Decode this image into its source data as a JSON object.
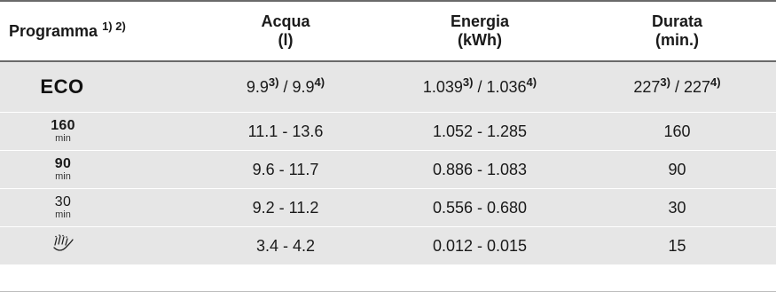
{
  "headers": {
    "program": "Programma",
    "program_notes": "1) 2)",
    "water_title": "Acqua",
    "water_unit": "(l)",
    "energy_title": "Energia",
    "energy_unit": "(kWh)",
    "duration_title": "Durata",
    "duration_unit": "(min.)"
  },
  "rows": [
    {
      "program": "ECO",
      "water_a": "9.9",
      "water_a_note": "3)",
      "water_sep": " / ",
      "water_b": "9.9",
      "water_b_note": "4)",
      "energy_a": "1.039",
      "energy_a_note": "3)",
      "energy_sep": " / ",
      "energy_b": "1.036",
      "energy_b_note": "4)",
      "duration_a": "227",
      "duration_a_note": "3)",
      "duration_sep": " / ",
      "duration_b": "227",
      "duration_b_note": "4)"
    },
    {
      "program_num": "160",
      "program_unit": "min",
      "water": "11.1 - 13.6",
      "energy": "1.052 - 1.285",
      "duration": "160"
    },
    {
      "program_num": "90",
      "program_unit": "min",
      "water": "9.6 - 11.7",
      "energy": "0.886 - 1.083",
      "duration": "90"
    },
    {
      "program_num": "30",
      "program_unit": "min",
      "water": "9.2 - 11.2",
      "energy": "0.556 - 0.680",
      "duration": "30"
    },
    {
      "program_icon": "rinse-spray-icon",
      "water": "3.4 - 4.2",
      "energy": "0.012 - 0.015",
      "duration": "15"
    }
  ]
}
